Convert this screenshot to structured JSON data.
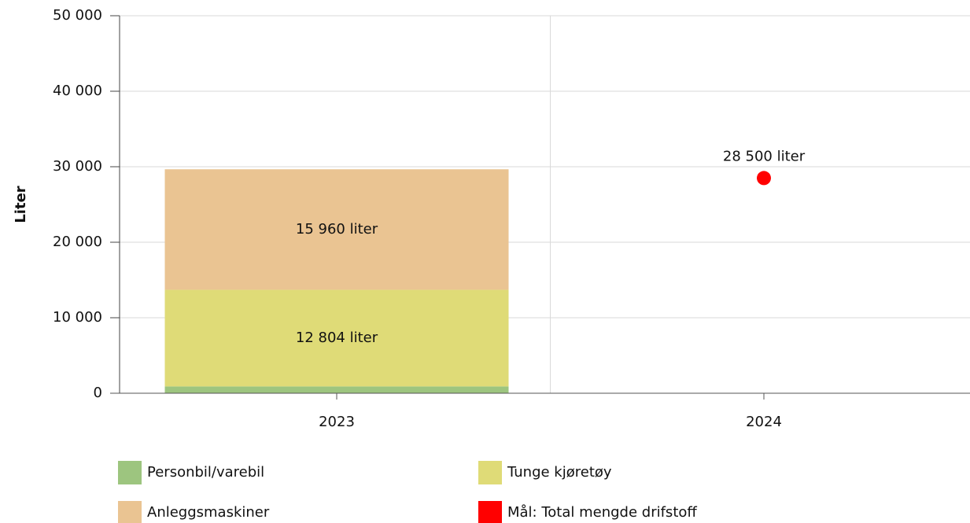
{
  "chart_data": {
    "type": "bar",
    "stacked": true,
    "ylabel": "Liter",
    "categories": [
      "2023",
      "2024"
    ],
    "series": [
      {
        "name": "Personbil/varebil",
        "color": "#9dc57f",
        "values": [
          900,
          null
        ]
      },
      {
        "name": "Tunge kjøretøy",
        "color": "#dfdb77",
        "values": [
          12804,
          null
        ],
        "value_labels": [
          "12 804 liter",
          null
        ]
      },
      {
        "name": "Anleggsmaskiner",
        "color": "#eac492",
        "values": [
          15960,
          null
        ],
        "value_labels": [
          "15 960 liter",
          null
        ]
      },
      {
        "name": "Mål: Total mengde drifstoff",
        "type": "scatter",
        "color": "#ff0000",
        "values": [
          null,
          28500
        ],
        "value_labels": [
          null,
          "28 500 liter"
        ]
      }
    ],
    "ylim": [
      0,
      50000
    ],
    "yticks": [
      0,
      {
        "value": 10000,
        "label": "10 000"
      },
      {
        "value": 20000,
        "label": "20 000"
      },
      {
        "value": 30000,
        "label": "30 000"
      },
      {
        "value": 40000,
        "label": "40 000"
      },
      {
        "value": 50000,
        "label": "50 000"
      }
    ],
    "grid": true
  }
}
